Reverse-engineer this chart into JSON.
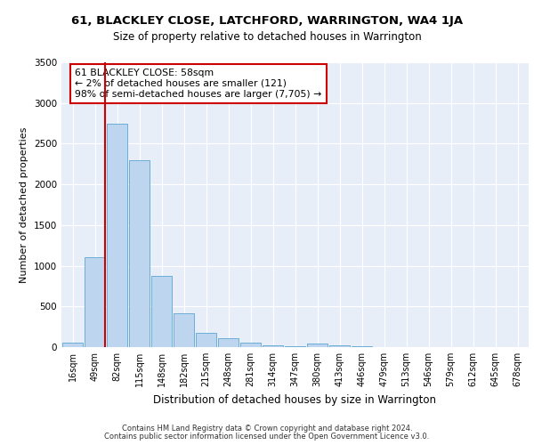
{
  "title1": "61, BLACKLEY CLOSE, LATCHFORD, WARRINGTON, WA4 1JA",
  "title2": "Size of property relative to detached houses in Warrington",
  "xlabel": "Distribution of detached houses by size in Warrington",
  "ylabel": "Number of detached properties",
  "bar_labels": [
    "16sqm",
    "49sqm",
    "82sqm",
    "115sqm",
    "148sqm",
    "182sqm",
    "215sqm",
    "248sqm",
    "281sqm",
    "314sqm",
    "347sqm",
    "380sqm",
    "413sqm",
    "446sqm",
    "479sqm",
    "513sqm",
    "546sqm",
    "579sqm",
    "612sqm",
    "645sqm",
    "678sqm"
  ],
  "bar_values": [
    50,
    1100,
    2750,
    2300,
    880,
    420,
    180,
    110,
    55,
    25,
    8,
    40,
    20,
    10,
    3,
    2,
    1,
    1,
    0,
    0,
    0
  ],
  "bar_color": "#bdd5ee",
  "bar_edge_color": "#6aaed6",
  "background_color": "#e8eef8",
  "vline_color": "#cc0000",
  "annotation_text": "61 BLACKLEY CLOSE: 58sqm\n← 2% of detached houses are smaller (121)\n98% of semi-detached houses are larger (7,705) →",
  "annotation_box_color": "#ffffff",
  "annotation_box_edge": "#cc0000",
  "ylim": [
    0,
    3500
  ],
  "yticks": [
    0,
    500,
    1000,
    1500,
    2000,
    2500,
    3000,
    3500
  ],
  "footer1": "Contains HM Land Registry data © Crown copyright and database right 2024.",
  "footer2": "Contains public sector information licensed under the Open Government Licence v3.0."
}
